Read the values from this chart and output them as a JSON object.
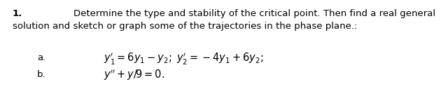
{
  "background_color": "#ffffff",
  "number": "1.",
  "line1": "Determine the type and stability of the critical point. Then find a real general",
  "line2": "solution and sketch or graph some of the trajectories in the phase plane.:",
  "label_a": "a.",
  "label_b": "b.",
  "eq_a": "$y_1' = 6y_1 - y_2;\\; y_2' = -4y_1 + 6y_2;$",
  "eq_b": "$y'' + y/9 = 0.$",
  "font_size_body": 9.5,
  "font_size_eq": 10.5
}
